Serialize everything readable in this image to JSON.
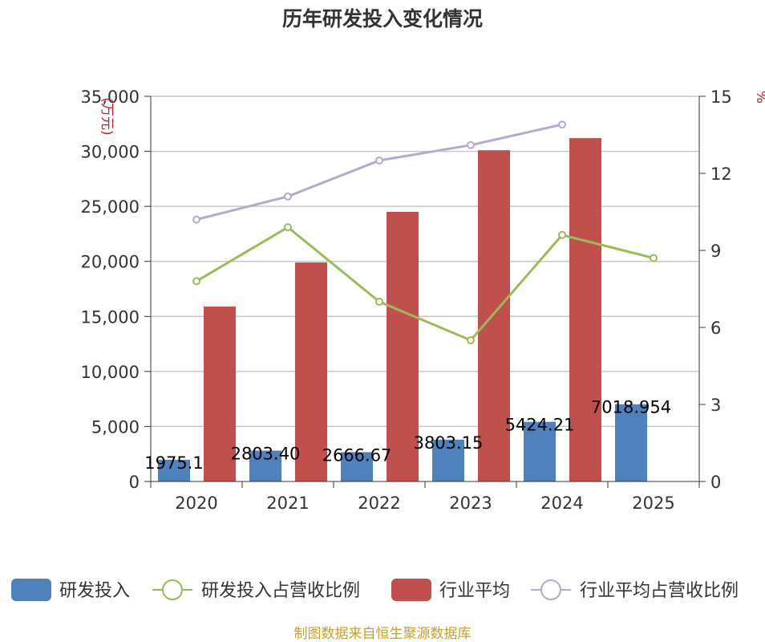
{
  "chart_data": {
    "type": "bar",
    "title": "历年研发投入变化情况",
    "categories": [
      "2020",
      "2021",
      "2022",
      "2023",
      "2024",
      "2025"
    ],
    "y_left": {
      "unit_label": "(万元)",
      "ylim": [
        0,
        35000
      ],
      "ticks": [
        "0",
        "5,000",
        "10,000",
        "15,000",
        "20,000",
        "25,000",
        "30,000",
        "35,000"
      ]
    },
    "y_right": {
      "unit_label": "%",
      "ylim": [
        0,
        15
      ],
      "ticks": [
        "0",
        "3",
        "6",
        "9",
        "12",
        "15"
      ]
    },
    "series": [
      {
        "name": "研发投入",
        "kind": "bar",
        "axis": "left",
        "color": "#4f81bd",
        "values": [
          1975.1,
          2803.4,
          2666.67,
          3803.15,
          5424.21,
          7018.954
        ],
        "labels": [
          "1975.1",
          "2803.40",
          "2666.67",
          "3803.15",
          "5424.21",
          "7018.954"
        ]
      },
      {
        "name": "行业平均",
        "kind": "bar",
        "axis": "left",
        "color": "#c0504d",
        "values": [
          15900,
          19900,
          24500,
          30100,
          31200,
          null
        ]
      },
      {
        "name": "研发投入占营收比例",
        "kind": "line",
        "axis": "right",
        "color": "#9bbb59",
        "values": [
          7.8,
          9.9,
          7.0,
          5.5,
          9.6,
          8.7
        ]
      },
      {
        "name": "行业平均占营收比例",
        "kind": "line",
        "axis": "right",
        "color": "#b7a9cc",
        "values": [
          10.2,
          11.1,
          12.5,
          13.1,
          13.9,
          null
        ]
      }
    ],
    "grid": true,
    "legend": "bottom"
  },
  "footer": {
    "source": "制图数据来自恒生聚源数据库"
  }
}
